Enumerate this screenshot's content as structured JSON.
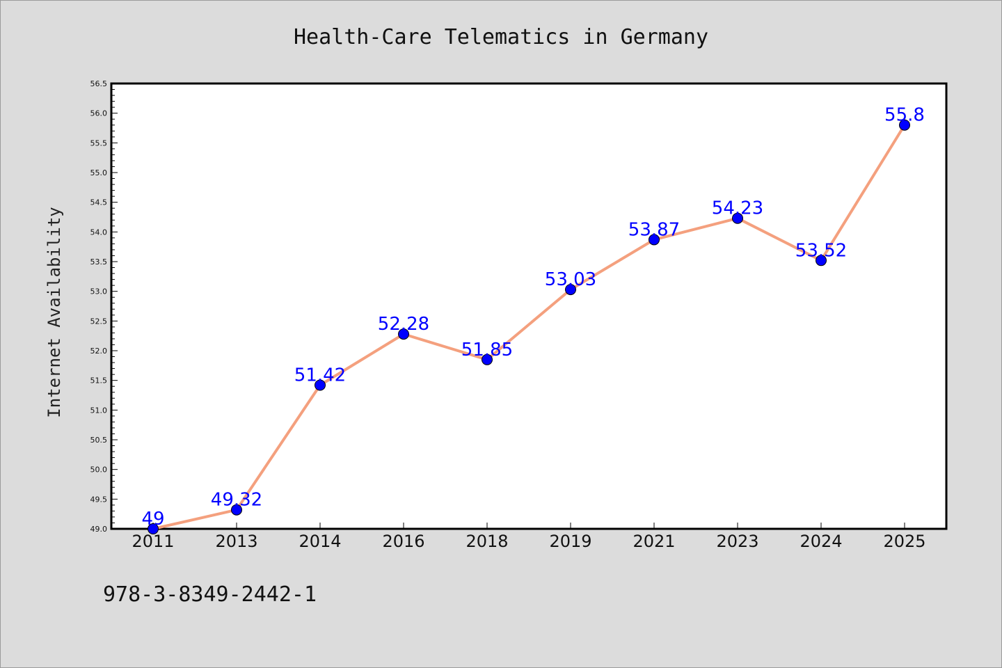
{
  "colors": {
    "background": "#dcdcdc",
    "plot_background": "#ffffff",
    "line": "#f4a07e",
    "marker": "#0000ff",
    "data_label": "#0000ff"
  },
  "footer": {
    "isbn": "978-3-8349-2442-1"
  },
  "chart_data": {
    "type": "line",
    "title": "Health-Care Telematics in Germany",
    "xlabel": "",
    "ylabel": "Internet Availability",
    "categories": [
      "2011",
      "2013",
      "2014",
      "2016",
      "2018",
      "2019",
      "2021",
      "2023",
      "2024",
      "2025"
    ],
    "series": [
      {
        "values": [
          49,
          49.32,
          51.42,
          52.28,
          51.85,
          53.03,
          53.87,
          54.23,
          53.52,
          55.8
        ]
      }
    ],
    "data_labels": [
      "49",
      "49.32",
      "51.42",
      "52.28",
      "51.85",
      "53.03",
      "53.87",
      "54.23",
      "53.52",
      "55.8"
    ],
    "ylim": [
      49.0,
      56.5
    ],
    "yticks": [
      "49.0",
      "49.5",
      "50.0",
      "50.5",
      "51.0",
      "51.5",
      "52.0",
      "52.5",
      "53.0",
      "53.5",
      "54.0",
      "54.5",
      "55.0",
      "55.5",
      "56.0",
      "56.5"
    ],
    "grid": false,
    "legend": "none"
  }
}
